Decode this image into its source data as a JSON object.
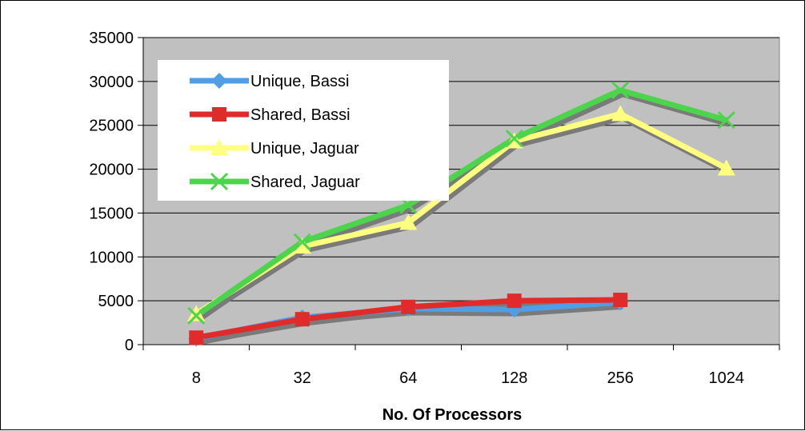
{
  "chart_data": {
    "type": "line",
    "title": "",
    "xlabel": "No. Of Processors",
    "ylabel": "",
    "categories": [
      "8",
      "32",
      "64",
      "128",
      "256",
      "1024"
    ],
    "ylim": [
      0,
      35000
    ],
    "yticks": [
      0,
      5000,
      10000,
      15000,
      20000,
      25000,
      30000,
      35000
    ],
    "grid": true,
    "legend_position": "top-left inside plot",
    "plot_background": "#c0c0c0",
    "series": [
      {
        "name": "Unique, Bassi",
        "marker": "diamond",
        "color": "#4f9ee6",
        "values": [
          700,
          3100,
          4100,
          4000,
          4800,
          null
        ]
      },
      {
        "name": "Shared, Bassi",
        "marker": "square",
        "color": "#e02b2b",
        "values": [
          800,
          2900,
          4300,
          5000,
          5100,
          null
        ]
      },
      {
        "name": "Unique, Jaguar",
        "marker": "triangle",
        "color": "#ffff80",
        "values": [
          3500,
          11200,
          13900,
          23200,
          26300,
          20100
        ]
      },
      {
        "name": "Shared, Jaguar",
        "marker": "x",
        "color": "#4dd44d",
        "values": [
          3300,
          11700,
          15900,
          23500,
          29000,
          25600
        ]
      }
    ]
  }
}
